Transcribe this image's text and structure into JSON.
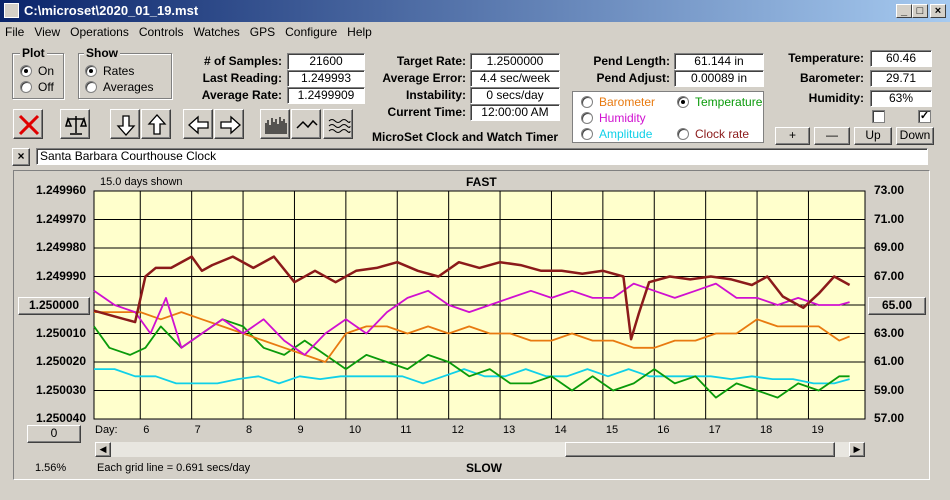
{
  "window": {
    "title": "C:\\microset\\2020_01_19.mst"
  },
  "menu": [
    "File",
    "View",
    "Operations",
    "Controls",
    "Watches",
    "GPS",
    "Configure",
    "Help"
  ],
  "plot_group": {
    "title": "Plot",
    "options": [
      {
        "label": "On",
        "selected": true
      },
      {
        "label": "Off",
        "selected": false
      }
    ]
  },
  "show_group": {
    "title": "Show",
    "options": [
      {
        "label": "Rates",
        "selected": true
      },
      {
        "label": "Averages",
        "selected": false
      }
    ]
  },
  "stats": {
    "samples_label": "# of Samples:",
    "samples": "21600",
    "last_label": "Last Reading:",
    "last": "1.249993",
    "avg_label": "Average Rate:",
    "avg": "1.2499909"
  },
  "timer": {
    "target_label": "Target Rate:",
    "target": "1.2500000",
    "error_label": "Average Error:",
    "error": "4.4 sec/week",
    "instab_label": "Instability:",
    "instab": "0 secs/day",
    "time_label": "Current Time:",
    "time": "12:00:00 AM",
    "app_name": "MicroSet Clock and Watch Timer"
  },
  "pend": {
    "length_label": "Pend Length:",
    "length": "61.144 in",
    "adjust_label": "Pend Adjust:",
    "adjust": "0.00089 in"
  },
  "env": {
    "temp_label": "Temperature:",
    "temp": "60.46",
    "baro_label": "Barometer:",
    "baro": "29.71",
    "hum_label": "Humidity:",
    "hum": "63%"
  },
  "legend": [
    {
      "label": "Barometer",
      "color": "#e87a10",
      "selected": false
    },
    {
      "label": "Temperature",
      "color": "#0a9a0a",
      "selected": true
    },
    {
      "label": "Humidity",
      "color": "#d010d0",
      "selected": false
    },
    {
      "label": "Amplitude",
      "color": "#10d0e8",
      "selected": false
    },
    {
      "label": "Clock rate",
      "color": "#8b1a1a",
      "selected": false
    }
  ],
  "small_buttons": {
    "plus": "+",
    "minus": "—",
    "up": "Up",
    "down": "Down"
  },
  "checkboxes": [
    false,
    true
  ],
  "clock_name": "Santa Barbara Courthouse Clock",
  "chart_data": {
    "type": "line",
    "days_shown": "15.0 days shown",
    "top_label": "FAST",
    "bottom_label": "SLOW",
    "left_ticks": [
      "1.249960",
      "1.249970",
      "1.249980",
      "1.249990",
      "1.250000",
      "1.250010",
      "1.250020",
      "1.250030",
      "1.250040"
    ],
    "left_center_button": "1.250000",
    "right_ticks": [
      "73.00",
      "71.00",
      "69.00",
      "67.00",
      "65.00",
      "63.00",
      "61.00",
      "59.00",
      "57.00"
    ],
    "right_center_button": "65.00",
    "x_prefix": "Day:",
    "x_ticks": [
      "6",
      "7",
      "8",
      "9",
      "10",
      "11",
      "12",
      "13",
      "14",
      "15",
      "16",
      "17",
      "18",
      "19"
    ],
    "x_range": [
      5.1,
      20.1
    ],
    "left_range": [
      1.24996,
      1.25004
    ],
    "right_range": [
      57,
      73
    ],
    "bottom_left_button": "0",
    "zoom_percent": "1.56%",
    "grid_note": "Each grid line = 0.691 secs/day",
    "background": "#ffffcc",
    "series": [
      {
        "key": "clock",
        "color": "#8b1a1a",
        "axis": "left",
        "x": [
          5.1,
          5.5,
          5.9,
          6.1,
          6.3,
          6.6,
          7.0,
          7.2,
          7.4,
          7.8,
          8.2,
          8.6,
          9.0,
          9.4,
          9.8,
          10.2,
          10.6,
          11.0,
          11.4,
          11.8,
          12.2,
          12.6,
          13.0,
          13.4,
          13.8,
          14.2,
          14.6,
          15.0,
          15.4,
          15.55,
          15.7,
          15.9,
          16.3,
          16.7,
          17.1,
          17.5,
          17.9,
          18.2,
          18.5,
          18.9,
          19.2,
          19.5,
          19.8
        ],
        "y": [
          1.250002,
          1.250004,
          1.250006,
          1.24999,
          1.249987,
          1.249987,
          1.249983,
          1.249988,
          1.249986,
          1.249983,
          1.249987,
          1.249983,
          1.249992,
          1.249988,
          1.249992,
          1.249988,
          1.249987,
          1.249985,
          1.249988,
          1.24999,
          1.249985,
          1.249987,
          1.249985,
          1.249986,
          1.249988,
          1.249988,
          1.249989,
          1.249988,
          1.24999,
          1.250012,
          1.250003,
          1.249992,
          1.24999,
          1.249991,
          1.24999,
          1.249991,
          1.249993,
          1.24999,
          1.249997,
          1.250001,
          1.249996,
          1.24999,
          1.249993
        ]
      },
      {
        "key": "humidity",
        "color": "#d010d0",
        "axis": "right",
        "x": [
          5.1,
          5.5,
          5.9,
          6.2,
          6.5,
          6.8,
          7.2,
          7.6,
          8.0,
          8.4,
          8.8,
          9.2,
          9.6,
          10.0,
          10.4,
          10.8,
          11.2,
          11.6,
          12.0,
          12.4,
          12.8,
          13.2,
          13.6,
          14.0,
          14.4,
          14.8,
          15.2,
          15.6,
          16.0,
          16.4,
          16.8,
          17.2,
          17.6,
          18.0,
          18.4,
          18.8,
          19.2,
          19.6,
          19.8
        ],
        "y": [
          66,
          65,
          64.5,
          63,
          65.5,
          62,
          63,
          64,
          63,
          64,
          62.5,
          61.5,
          63,
          64,
          63,
          64.5,
          65.5,
          66,
          65,
          64.5,
          65,
          65.5,
          66,
          65.5,
          66,
          65.5,
          65.5,
          66.5,
          66,
          65.5,
          66,
          66.5,
          65.5,
          65.5,
          65,
          65.5,
          65,
          65,
          65.2
        ]
      },
      {
        "key": "barometer",
        "color": "#e87a10",
        "axis": "right",
        "x": [
          5.1,
          5.5,
          6.0,
          6.4,
          6.8,
          7.2,
          7.6,
          8.0,
          8.4,
          8.8,
          9.2,
          9.6,
          10.0,
          10.4,
          10.8,
          11.2,
          11.6,
          12.0,
          12.4,
          12.8,
          13.2,
          13.6,
          14.0,
          14.4,
          14.8,
          15.2,
          15.6,
          16.0,
          16.4,
          16.8,
          17.2,
          17.6,
          18.0,
          18.4,
          18.8,
          19.2,
          19.6,
          19.8
        ],
        "y": [
          64.5,
          64.5,
          64.5,
          64,
          64.5,
          64,
          63.5,
          63,
          62.5,
          62,
          61.5,
          61,
          63,
          63.5,
          63.5,
          63,
          63.5,
          63,
          63.5,
          63,
          63,
          62.5,
          62.5,
          63,
          62.5,
          62.5,
          62,
          62,
          62.5,
          62.5,
          63,
          63,
          64,
          63.5,
          63.5,
          63.5,
          62.5,
          62.8
        ]
      },
      {
        "key": "temperature",
        "color": "#0a9a0a",
        "axis": "right",
        "x": [
          5.1,
          5.4,
          5.8,
          6.1,
          6.4,
          6.8,
          7.2,
          7.6,
          8.0,
          8.4,
          8.8,
          9.2,
          9.6,
          10.0,
          10.4,
          10.8,
          11.2,
          11.6,
          12.0,
          12.4,
          12.8,
          13.2,
          13.6,
          14.0,
          14.4,
          14.8,
          15.2,
          15.6,
          16.0,
          16.4,
          16.8,
          17.2,
          17.6,
          18.0,
          18.4,
          18.8,
          19.2,
          19.6,
          19.8
        ],
        "y": [
          63.5,
          62,
          61.5,
          62,
          63.5,
          62,
          63,
          64,
          63.5,
          62,
          61.5,
          62.5,
          61.5,
          60.5,
          61.5,
          61,
          60.5,
          61.5,
          61,
          60,
          60.5,
          59.5,
          59.5,
          60,
          59,
          60,
          59,
          59.5,
          60.5,
          59.5,
          60,
          58.5,
          59.5,
          59,
          58.5,
          59.5,
          59,
          60,
          60
        ]
      },
      {
        "key": "amplitude",
        "color": "#10d0e8",
        "axis": "right",
        "x": [
          5.1,
          5.5,
          5.9,
          6.3,
          6.7,
          7.1,
          7.5,
          7.9,
          8.3,
          8.7,
          9.1,
          9.5,
          9.9,
          10.3,
          10.7,
          11.1,
          11.5,
          11.9,
          12.3,
          12.7,
          13.1,
          13.5,
          13.9,
          14.3,
          14.7,
          15.1,
          15.5,
          15.9,
          16.3,
          16.7,
          17.1,
          17.5,
          17.9,
          18.3,
          18.7,
          19.1,
          19.5,
          19.8
        ],
        "y": [
          60.5,
          60.5,
          60,
          60,
          59.5,
          59.5,
          59.5,
          59.8,
          60,
          59.5,
          60,
          59.8,
          60,
          60,
          60,
          60,
          59.5,
          60,
          60.5,
          60,
          60,
          60.5,
          60,
          60,
          60.5,
          60,
          60.5,
          60,
          60,
          60,
          60,
          59.8,
          60,
          59.8,
          59.8,
          59.5,
          59.5,
          59.8
        ]
      }
    ]
  }
}
